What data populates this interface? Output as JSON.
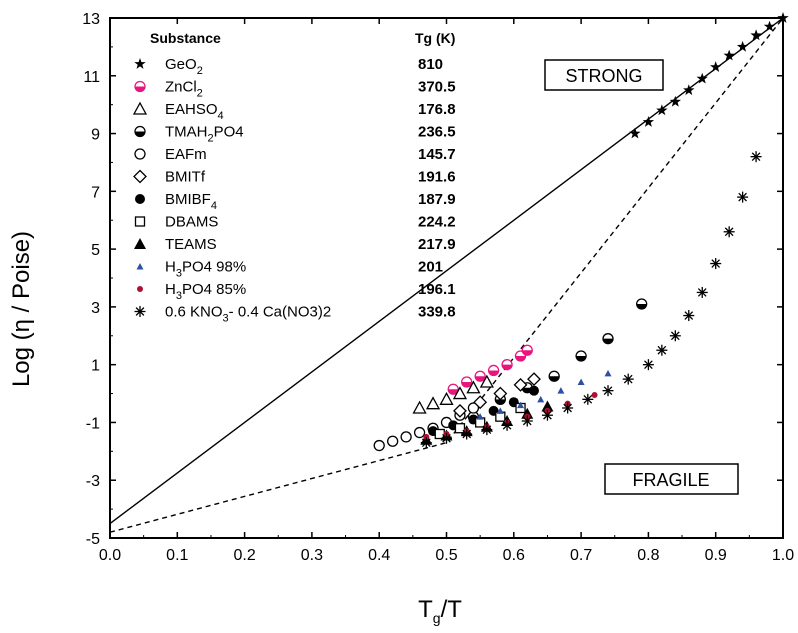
{
  "chart_data": {
    "type": "scatter",
    "title": "",
    "xlabel_main": "T",
    "xlabel_sub": "g",
    "xlabel_tail": "/T",
    "ylabel": "Log (η / Poise)",
    "xlim": [
      0.0,
      1.0
    ],
    "ylim": [
      -5,
      13
    ],
    "x_ticks": [
      "0.0",
      "0.1",
      "0.2",
      "0.3",
      "0.4",
      "0.5",
      "0.6",
      "0.7",
      "0.8",
      "0.9",
      "1.0"
    ],
    "y_ticks": [
      "-5",
      "-3",
      "-1",
      "1",
      "3",
      "5",
      "7",
      "9",
      "11",
      "13"
    ],
    "annotations": {
      "strong": "STRONG",
      "fragile": "FRAGILE"
    },
    "legend_header": {
      "substance": "Substance",
      "tg": "Tg (K)"
    },
    "legend": [
      {
        "name": "GeO2",
        "base": "GeO",
        "sub": "2",
        "tail": "",
        "tg": "810",
        "marker": "star",
        "color": "#000000"
      },
      {
        "name": "ZnCl2",
        "base": "ZnCl",
        "sub": "2",
        "tail": "",
        "tg": "370.5",
        "marker": "circle-half",
        "color": "#e8157e"
      },
      {
        "name": "EAHSO4",
        "base": "EAHSO",
        "sub": "4",
        "tail": "",
        "tg": "176.8",
        "marker": "triangle-open",
        "color": "#000000"
      },
      {
        "name": "TMAH2PO4",
        "base": "TMAH",
        "sub": "2",
        "tail": "PO4",
        "tg": "236.5",
        "marker": "circle-half",
        "color": "#000000"
      },
      {
        "name": "EAFm",
        "base": "EAFm",
        "sub": "",
        "tail": "",
        "tg": "145.7",
        "marker": "circle-open",
        "color": "#000000"
      },
      {
        "name": "BMITf",
        "base": "BMITf",
        "sub": "",
        "tail": "",
        "tg": "191.6",
        "marker": "diamond-open",
        "color": "#000000"
      },
      {
        "name": "BMIBF4",
        "base": "BMIBF",
        "sub": "4",
        "tail": "",
        "tg": "187.9",
        "marker": "circle-filled",
        "color": "#000000"
      },
      {
        "name": "DBAMS",
        "base": "DBAMS",
        "sub": "",
        "tail": "",
        "tg": "224.2",
        "marker": "square-open",
        "color": "#000000"
      },
      {
        "name": "TEAMS",
        "base": "TEAMS",
        "sub": "",
        "tail": "",
        "tg": "217.9",
        "marker": "triangle-filled",
        "color": "#000000"
      },
      {
        "name": "H3PO4 98%",
        "base": "H",
        "sub": "3",
        "tail": "PO4 98%",
        "tg": "201",
        "marker": "triangle-small",
        "color": "#2e4fa8"
      },
      {
        "name": "H3PO4 85%",
        "base": "H",
        "sub": "3",
        "tail": "PO4 85%",
        "tg": "196.1",
        "marker": "dot-small",
        "color": "#b01030"
      },
      {
        "name": "0.6 KNO3- 0.4 Ca(NO3)2",
        "base": "0.6 KNO",
        "sub": "3",
        "tail": "- 0.4 Ca(NO3)2",
        "tg": "339.8",
        "marker": "asterisk",
        "color": "#000000"
      }
    ],
    "reference_lines": [
      {
        "style": "solid",
        "x": [
          0.0,
          1.0
        ],
        "y": [
          -4.5,
          13.0
        ]
      },
      {
        "style": "dashed",
        "x": [
          0.0,
          0.5,
          1.0
        ],
        "y": [
          -4.8,
          -1.7,
          13.0
        ]
      }
    ],
    "series": [
      {
        "name": "GeO2",
        "x": [
          0.78,
          0.8,
          0.82,
          0.84,
          0.86,
          0.88,
          0.9,
          0.92,
          0.94,
          0.96,
          0.98,
          1.0
        ],
        "y": [
          9.0,
          9.4,
          9.8,
          10.1,
          10.5,
          10.9,
          11.3,
          11.7,
          12.0,
          12.4,
          12.7,
          13.0
        ]
      },
      {
        "name": "ZnCl2",
        "x": [
          0.51,
          0.53,
          0.55,
          0.57,
          0.59,
          0.61,
          0.62
        ],
        "y": [
          0.15,
          0.4,
          0.6,
          0.8,
          1.0,
          1.3,
          1.5
        ]
      },
      {
        "name": "EAHSO4",
        "x": [
          0.46,
          0.48,
          0.5,
          0.52,
          0.54,
          0.56
        ],
        "y": [
          -0.5,
          -0.35,
          -0.2,
          0.0,
          0.2,
          0.4
        ]
      },
      {
        "name": "TMAH2PO4",
        "x": [
          0.54,
          0.58,
          0.62,
          0.66,
          0.7,
          0.74,
          0.79
        ],
        "y": [
          -0.8,
          -0.2,
          0.2,
          0.6,
          1.3,
          1.9,
          3.1
        ]
      },
      {
        "name": "EAFm",
        "x": [
          0.4,
          0.42,
          0.44,
          0.46,
          0.48,
          0.5,
          0.52,
          0.54
        ],
        "y": [
          -1.8,
          -1.65,
          -1.5,
          -1.35,
          -1.2,
          -1.0,
          -0.75,
          -0.5
        ]
      },
      {
        "name": "BMITf",
        "x": [
          0.52,
          0.55,
          0.58,
          0.61,
          0.63
        ],
        "y": [
          -0.6,
          -0.3,
          0.0,
          0.3,
          0.5
        ]
      },
      {
        "name": "BMIBF4",
        "x": [
          0.48,
          0.51,
          0.54,
          0.57,
          0.6,
          0.63
        ],
        "y": [
          -1.3,
          -1.1,
          -0.9,
          -0.6,
          -0.3,
          0.1
        ]
      },
      {
        "name": "DBAMS",
        "x": [
          0.49,
          0.52,
          0.55,
          0.58,
          0.61
        ],
        "y": [
          -1.4,
          -1.2,
          -1.0,
          -0.8,
          -0.5
        ]
      },
      {
        "name": "TEAMS",
        "x": [
          0.47,
          0.5,
          0.53,
          0.56,
          0.59,
          0.62,
          0.65
        ],
        "y": [
          -1.6,
          -1.45,
          -1.3,
          -1.15,
          -0.95,
          -0.7,
          -0.45
        ]
      },
      {
        "name": "H3PO4 98%",
        "x": [
          0.55,
          0.58,
          0.61,
          0.64,
          0.67,
          0.7,
          0.74
        ],
        "y": [
          -0.8,
          -0.6,
          -0.4,
          -0.2,
          0.1,
          0.4,
          0.7
        ]
      },
      {
        "name": "H3PO4 85%",
        "x": [
          0.47,
          0.5,
          0.53,
          0.56,
          0.59,
          0.62,
          0.65,
          0.68,
          0.72
        ],
        "y": [
          -1.5,
          -1.4,
          -1.3,
          -1.15,
          -1.0,
          -0.8,
          -0.6,
          -0.35,
          -0.05
        ]
      },
      {
        "name": "0.6 KNO3- 0.4 Ca(NO3)2",
        "x": [
          0.47,
          0.5,
          0.53,
          0.56,
          0.59,
          0.62,
          0.65,
          0.68,
          0.71,
          0.74,
          0.77,
          0.8,
          0.82,
          0.84,
          0.86,
          0.88,
          0.9,
          0.92,
          0.94,
          0.96
        ],
        "y": [
          -1.7,
          -1.55,
          -1.4,
          -1.25,
          -1.1,
          -0.95,
          -0.75,
          -0.5,
          -0.2,
          0.1,
          0.5,
          1.0,
          1.5,
          2.0,
          2.7,
          3.5,
          4.5,
          5.6,
          6.8,
          8.2
        ]
      }
    ]
  }
}
